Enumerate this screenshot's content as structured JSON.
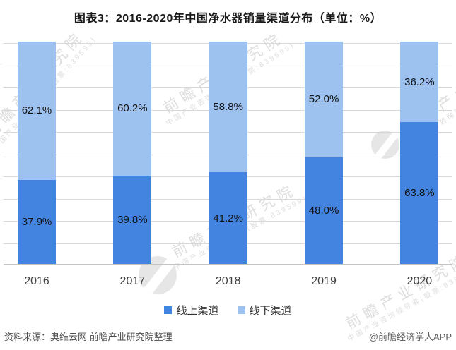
{
  "title": "图表3：2016-2020年中国净水器销量渠道分布（单位：%）",
  "chart_data": {
    "type": "bar",
    "subtype": "stacked-100",
    "title": "图表3：2016-2020年中国净水器销量渠道分布（单位：%）",
    "categories": [
      "2016",
      "2017",
      "2018",
      "2019",
      "2020"
    ],
    "series": [
      {
        "name": "线上渠道",
        "color": "#4284e0",
        "values": [
          37.9,
          39.8,
          41.2,
          48.0,
          63.8
        ]
      },
      {
        "name": "线下渠道",
        "color": "#9dc2f0",
        "values": [
          62.1,
          60.2,
          58.8,
          52.0,
          36.2
        ]
      }
    ],
    "value_label_suffix": "%",
    "ylim": [
      0,
      100
    ],
    "ytick_step": 10,
    "grid": true,
    "y_axis_labels_visible": false,
    "legend_position": "bottom",
    "gridline_color": "#d8d8d8",
    "axis_color": "#c4c4c4"
  },
  "legend": {
    "items": [
      {
        "label": "线上渠道",
        "color": "#4284e0"
      },
      {
        "label": "线下渠道",
        "color": "#9dc2f0"
      }
    ]
  },
  "footer": {
    "source": "资料来源：奥维云网 前瞻产业研究院整理",
    "credit": "@前瞻经济学人APP"
  },
  "watermark": {
    "text": "前瞻产业研究院",
    "subtext": "中国产业咨询领导者(股票:839599)"
  }
}
